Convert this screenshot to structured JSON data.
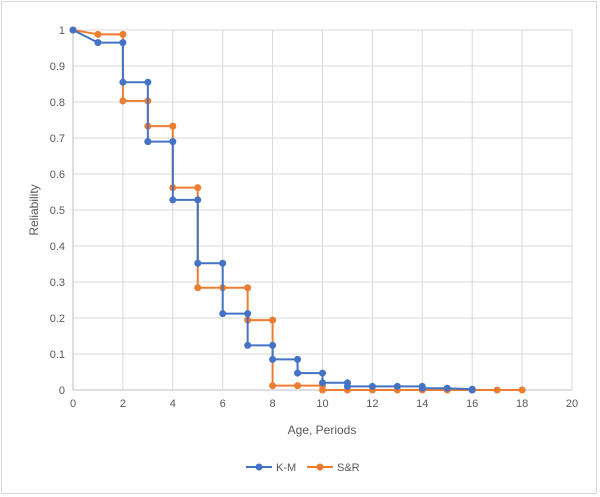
{
  "chart_data": {
    "type": "line",
    "title": "",
    "xlabel": "Age, Periods",
    "ylabel": "Reliability",
    "xlim": [
      0,
      20
    ],
    "ylim": [
      0,
      1
    ],
    "x_ticks": [
      "0",
      "2",
      "4",
      "6",
      "8",
      "10",
      "12",
      "14",
      "16",
      "18",
      "20"
    ],
    "y_ticks": [
      "0",
      "0.1",
      "0.2",
      "0.3",
      "0.4",
      "0.5",
      "0.6",
      "0.7",
      "0.8",
      "0.9",
      "1"
    ],
    "grid": true,
    "legend_position": "bottom",
    "series": [
      {
        "name": "K-M",
        "color": "#4472c4",
        "points": [
          [
            0,
            1
          ],
          [
            1,
            0.965
          ],
          [
            2,
            0.965
          ],
          [
            2,
            0.855
          ],
          [
            3,
            0.855
          ],
          [
            3,
            0.69
          ],
          [
            4,
            0.69
          ],
          [
            4,
            0.528
          ],
          [
            5,
            0.528
          ],
          [
            5,
            0.352
          ],
          [
            6,
            0.352
          ],
          [
            6,
            0.212
          ],
          [
            7,
            0.212
          ],
          [
            7,
            0.124
          ],
          [
            8,
            0.124
          ],
          [
            8,
            0.085
          ],
          [
            9,
            0.085
          ],
          [
            9,
            0.047
          ],
          [
            10,
            0.047
          ],
          [
            10,
            0.02
          ],
          [
            11,
            0.02
          ],
          [
            11,
            0.01
          ],
          [
            12,
            0.01
          ],
          [
            13,
            0.01
          ],
          [
            14,
            0.01
          ],
          [
            14,
            0.005
          ],
          [
            15,
            0.005
          ],
          [
            16,
            0.002
          ],
          [
            16,
            0
          ]
        ]
      },
      {
        "name": "S&R",
        "color": "#ed7d31",
        "points": [
          [
            0,
            1
          ],
          [
            1,
            0.988
          ],
          [
            2,
            0.988
          ],
          [
            2,
            0.803
          ],
          [
            3,
            0.803
          ],
          [
            3,
            0.733
          ],
          [
            4,
            0.733
          ],
          [
            4,
            0.562
          ],
          [
            5,
            0.562
          ],
          [
            5,
            0.284
          ],
          [
            6,
            0.284
          ],
          [
            7,
            0.284
          ],
          [
            7,
            0.194
          ],
          [
            8,
            0.194
          ],
          [
            8,
            0.012
          ],
          [
            9,
            0.012
          ],
          [
            10,
            0.012
          ],
          [
            10,
            0
          ],
          [
            11,
            0
          ],
          [
            12,
            0
          ],
          [
            13,
            0
          ],
          [
            14,
            0
          ],
          [
            15,
            0
          ],
          [
            16,
            0
          ],
          [
            17,
            0
          ],
          [
            18,
            0
          ]
        ]
      }
    ]
  }
}
